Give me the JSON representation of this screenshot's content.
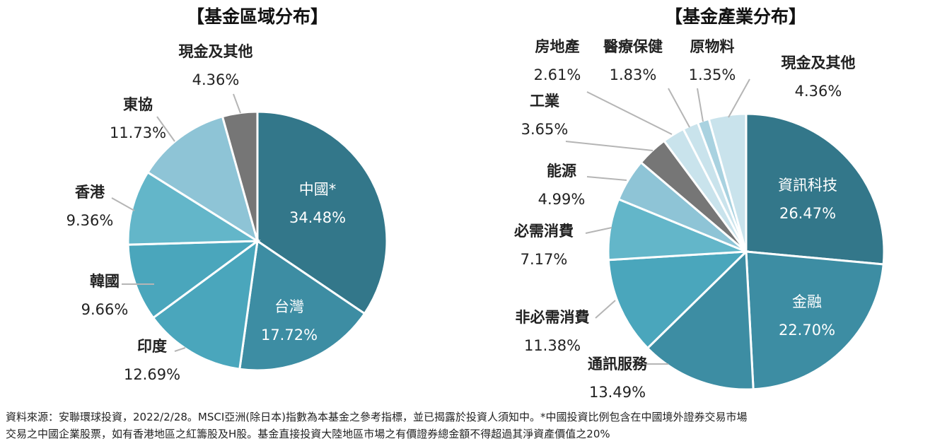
{
  "colors": {
    "dark_teal": "#33778a",
    "teal": "#3d8da3",
    "mid_teal": "#4aa6bc",
    "light_blue": "#63b6c9",
    "sky": "#8ec4d6",
    "pale": "#c9e3ec",
    "gray": "#767676"
  },
  "chart_data": [
    {
      "type": "pie",
      "title": "【基金區域分布】",
      "slices": [
        {
          "label": "中國*",
          "value": 34.48,
          "value_text": "34.48%",
          "color": "#33778a"
        },
        {
          "label": "台灣",
          "value": 17.72,
          "value_text": "17.72%",
          "color": "#3d8da3"
        },
        {
          "label": "印度",
          "value": 12.69,
          "value_text": "12.69%",
          "color": "#4aa6bc"
        },
        {
          "label": "韓國",
          "value": 9.66,
          "value_text": "9.66%",
          "color": "#4aa6bc"
        },
        {
          "label": "香港",
          "value": 9.36,
          "value_text": "9.36%",
          "color": "#63b6c9"
        },
        {
          "label": "東協",
          "value": 11.73,
          "value_text": "11.73%",
          "color": "#8ec4d6"
        },
        {
          "label": "現金及其他",
          "value": 4.36,
          "value_text": "4.36%",
          "color": "#767676"
        }
      ]
    },
    {
      "type": "pie",
      "title": "【基金產業分布】",
      "slices": [
        {
          "label": "資訊科技",
          "value": 26.47,
          "value_text": "26.47%",
          "color": "#33778a"
        },
        {
          "label": "金融",
          "value": 22.7,
          "value_text": "22.70%",
          "color": "#3d8da3"
        },
        {
          "label": "通訊服務",
          "value": 13.49,
          "value_text": "13.49%",
          "color": "#3d8da3"
        },
        {
          "label": "非必需消費",
          "value": 11.38,
          "value_text": "11.38%",
          "color": "#4aa6bc"
        },
        {
          "label": "必需消費",
          "value": 7.17,
          "value_text": "7.17%",
          "color": "#63b6c9"
        },
        {
          "label": "能源",
          "value": 4.99,
          "value_text": "4.99%",
          "color": "#8ec4d6"
        },
        {
          "label": "工業",
          "value": 3.65,
          "value_text": "3.65%",
          "color": "#767676"
        },
        {
          "label": "房地產",
          "value": 2.61,
          "value_text": "2.61%",
          "color": "#c9e3ec"
        },
        {
          "label": "醫療保健",
          "value": 1.83,
          "value_text": "1.83%",
          "color": "#c9e3ec"
        },
        {
          "label": "原物料",
          "value": 1.35,
          "value_text": "1.35%",
          "color": "#a9d2e0"
        },
        {
          "label": "現金及其他",
          "value": 4.36,
          "value_text": "4.36%",
          "color": "#c9e3ec"
        }
      ]
    }
  ],
  "source_note": {
    "line1": "資料來源：安聯環球投資，2022/2/28。MSCI亞洲(除日本)指數為本基金之參考指標，並已揭露於投資人須知中。*中國投資比例包含在中國境外證券交易市場",
    "line2": "交易之中國企業股票，如有香港地區之紅籌股及H股。基金直接投資大陸地區市場之有價證券總金額不得超過其淨資產價值之20%"
  }
}
